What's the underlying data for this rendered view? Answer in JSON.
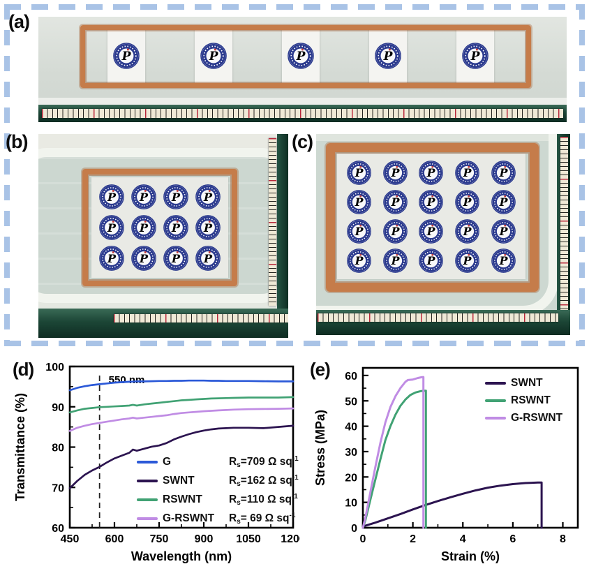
{
  "figure": {
    "panel_labels": {
      "a": "(a)",
      "b": "(b)",
      "c": "(c)",
      "d": "(d)",
      "e": "(e)"
    }
  },
  "photos": {
    "a": {
      "stamp_count": 5,
      "cols": 5,
      "rows": 1
    },
    "b": {
      "stamp_count": 12,
      "cols": 4,
      "rows": 3
    },
    "c": {
      "stamp_count": 20,
      "cols": 5,
      "rows": 4
    }
  },
  "colors": {
    "dashed_border": "#a9c3e6",
    "copper_frame": "#c57c4a",
    "table_green": "#1c4636",
    "seal_navy": "#2b3a8e",
    "seal_red": "#c23b3b"
  },
  "chart_data": [
    {
      "id": "d",
      "type": "line",
      "xlabel": "Wavelength (nm)",
      "ylabel": "Transmittance (%)",
      "xlim": [
        450,
        1200
      ],
      "ylim": [
        60,
        100
      ],
      "xticks": [
        450,
        600,
        750,
        900,
        1050,
        1200
      ],
      "yticks": [
        60,
        70,
        80,
        90,
        100
      ],
      "xminor": [
        525,
        675,
        825,
        975,
        1125
      ],
      "yminor": [
        65,
        75,
        85,
        95
      ],
      "grid": false,
      "legend_position": "lower right",
      "annotation": {
        "text": "550 nm",
        "x": 550,
        "y_top": 98.3
      },
      "x": [
        450,
        475,
        500,
        525,
        550,
        575,
        600,
        625,
        650,
        662,
        675,
        700,
        725,
        750,
        775,
        800,
        825,
        850,
        875,
        900,
        925,
        950,
        975,
        1000,
        1050,
        1100,
        1150,
        1200
      ],
      "series": [
        {
          "name": "G",
          "color": "#2b59d8",
          "legend": {
            "pre": "R",
            "sub": "s",
            "main": "=709 Ω sq",
            "sup": "-1"
          },
          "y": [
            94.1,
            94.7,
            95.1,
            95.4,
            95.6,
            95.8,
            96.0,
            96.1,
            96.2,
            96.25,
            96.3,
            96.3,
            96.35,
            96.4,
            96.4,
            96.45,
            96.45,
            96.5,
            96.5,
            96.5,
            96.45,
            96.45,
            96.4,
            96.4,
            96.4,
            96.35,
            96.3,
            96.3
          ]
        },
        {
          "name": "SWNT",
          "color": "#2c1450",
          "legend": {
            "pre": "R",
            "sub": "s",
            "main": "=162 Ω sq",
            "sup": "-1"
          },
          "y": [
            69.8,
            71.6,
            73.1,
            74.2,
            75.1,
            76.2,
            77.2,
            77.9,
            78.6,
            79.4,
            79.1,
            79.6,
            80.1,
            80.4,
            81.0,
            81.9,
            82.6,
            83.2,
            83.7,
            84.1,
            84.4,
            84.6,
            84.7,
            84.8,
            84.8,
            84.7,
            85.0,
            85.3
          ]
        },
        {
          "name": "RSWNT",
          "color": "#41a274",
          "legend": {
            "pre": "R",
            "sub": "s",
            "main": "=110 Ω sq",
            "sup": "-1"
          },
          "y": [
            88.6,
            89.1,
            89.5,
            89.7,
            89.9,
            90.0,
            90.1,
            90.2,
            90.3,
            90.5,
            90.3,
            90.6,
            90.8,
            91.0,
            91.2,
            91.4,
            91.6,
            91.7,
            91.85,
            91.95,
            92.05,
            92.1,
            92.15,
            92.2,
            92.3,
            92.3,
            92.3,
            92.4
          ]
        },
        {
          "name": "G-RSWNT",
          "color": "#c08ce4",
          "legend": {
            "pre": "R",
            "sub": "s",
            "main": "= 69 Ω sq",
            "sup": "-1"
          },
          "y": [
            84.0,
            84.8,
            85.3,
            85.7,
            86.0,
            86.3,
            86.6,
            86.9,
            87.1,
            87.3,
            87.1,
            87.3,
            87.5,
            87.7,
            87.9,
            88.2,
            88.45,
            88.6,
            88.75,
            88.9,
            89.0,
            89.1,
            89.2,
            89.3,
            89.4,
            89.45,
            89.5,
            89.6
          ]
        }
      ]
    },
    {
      "id": "e",
      "type": "line",
      "xlabel": "Strain (%)",
      "ylabel": "Stress (MPa)",
      "xlim": [
        0,
        8.6
      ],
      "ylim": [
        0,
        63
      ],
      "xticks": [
        0,
        2,
        4,
        6,
        8
      ],
      "yticks": [
        0,
        10,
        20,
        30,
        40,
        50,
        60
      ],
      "xminor": [
        1,
        3,
        5,
        7
      ],
      "yminor": [
        5,
        15,
        25,
        35,
        45,
        55
      ],
      "grid": false,
      "legend_position": "upper right",
      "series": [
        {
          "name": "SWNT",
          "color": "#2c1450",
          "x": [
            0,
            0.5,
            1,
            1.5,
            2,
            2.5,
            3,
            3.5,
            4,
            4.5,
            5,
            5.5,
            6,
            6.5,
            7,
            7.15,
            7.15
          ],
          "y": [
            0.5,
            2.0,
            3.7,
            5.4,
            7.2,
            8.9,
            10.5,
            12.0,
            13.4,
            14.7,
            15.8,
            16.6,
            17.2,
            17.6,
            17.8,
            17.8,
            0
          ]
        },
        {
          "name": "RSWNT",
          "color": "#41a274",
          "x": [
            0,
            0.1,
            0.3,
            0.5,
            0.7,
            0.9,
            1.1,
            1.3,
            1.5,
            1.7,
            1.9,
            2.1,
            2.3,
            2.45,
            2.52,
            2.52
          ],
          "y": [
            0,
            3,
            11,
            19,
            27,
            34.5,
            40,
            44.5,
            48,
            50.5,
            52.3,
            53.3,
            53.8,
            54,
            54,
            0
          ]
        },
        {
          "name": "G-RSWNT",
          "color": "#c08ce4",
          "x": [
            0,
            0.1,
            0.3,
            0.5,
            0.7,
            0.9,
            1.1,
            1.3,
            1.5,
            1.7,
            1.8,
            2.0,
            2.2,
            2.35,
            2.42,
            2.42
          ],
          "y": [
            0,
            4,
            14,
            24,
            33.5,
            41.5,
            47.5,
            51.8,
            55,
            57.5,
            58.2,
            58.4,
            59,
            59.3,
            59.4,
            0
          ]
        }
      ]
    }
  ]
}
